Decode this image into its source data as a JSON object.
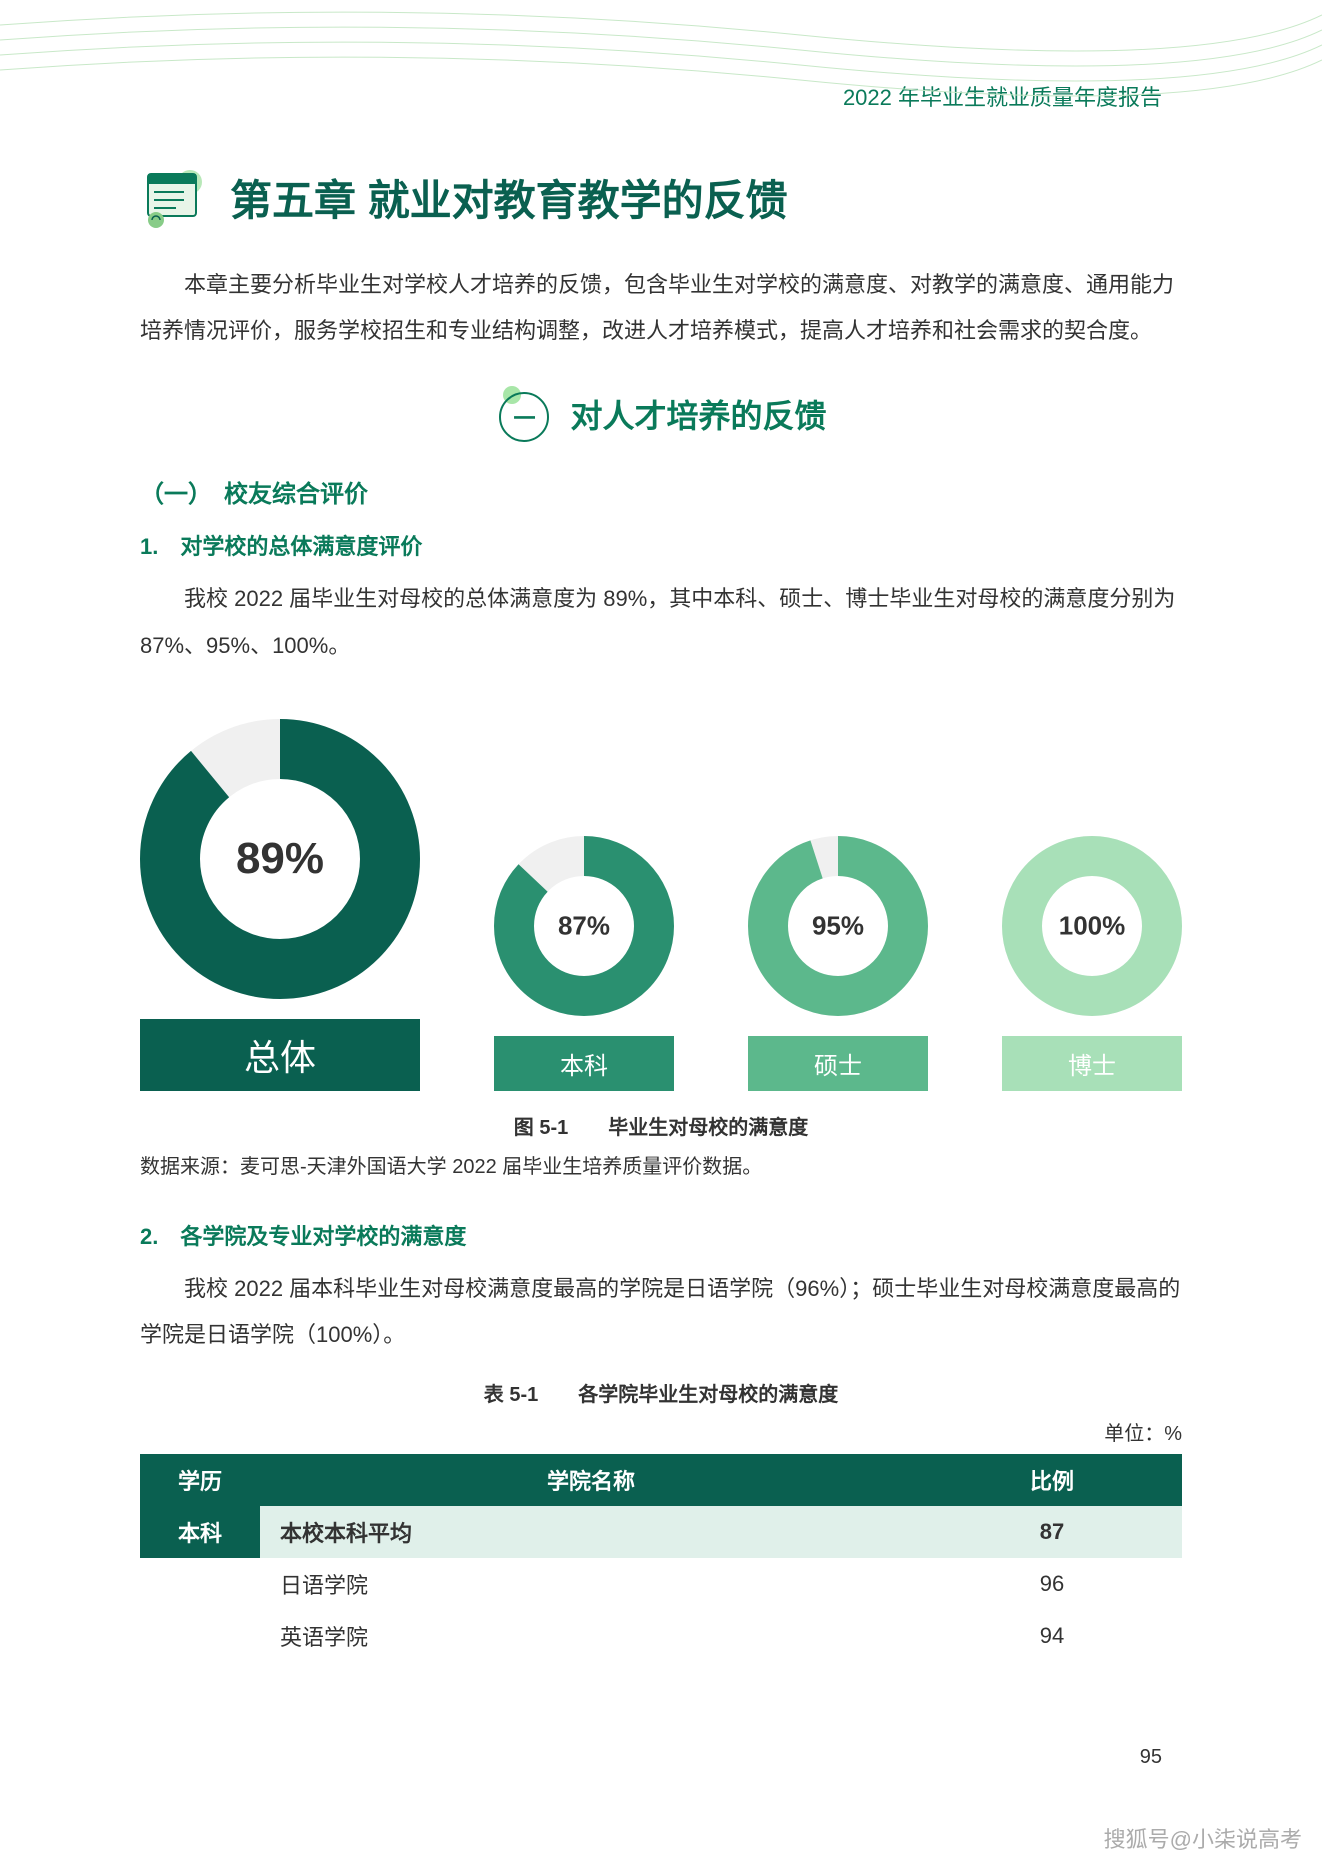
{
  "header": {
    "report_title": "2022 年毕业生就业质量年度报告"
  },
  "chapter": {
    "title": "第五章 就业对教育教学的反馈",
    "intro": "本章主要分析毕业生对学校人才培养的反馈，包含毕业生对学校的满意度、对教学的满意度、通用能力培养情况评价，服务学校招生和专业结构调整，改进人才培养模式，提高人才培养和社会需求的契合度。"
  },
  "section1": {
    "badge": "一",
    "title": "对人才培养的反馈"
  },
  "subsection1": {
    "label": "（一）　校友综合评价"
  },
  "item1": {
    "title": "1.　对学校的总体满意度评价",
    "body": "我校 2022 届毕业生对母校的总体满意度为 89%，其中本科、硕士、博士毕业生对母校的满意度分别为 87%、95%、100%。"
  },
  "donut_chart": {
    "type": "donut",
    "background_color": "#ffffff",
    "items": [
      {
        "label": "总体",
        "value": 89,
        "display": "89%",
        "size": 280,
        "thickness": 60,
        "color": "#0a6050",
        "remainder_color": "#f0f0f0",
        "center_fontsize": 44,
        "label_bg": "#0a6050",
        "label_fontsize": 36
      },
      {
        "label": "本科",
        "value": 87,
        "display": "87%",
        "size": 180,
        "thickness": 40,
        "color": "#2a9070",
        "remainder_color": "#f0f0f0",
        "center_fontsize": 26,
        "label_bg": "#2a9070",
        "label_fontsize": 24
      },
      {
        "label": "硕士",
        "value": 95,
        "display": "95%",
        "size": 180,
        "thickness": 40,
        "color": "#5cb88c",
        "remainder_color": "#f0f0f0",
        "center_fontsize": 26,
        "label_bg": "#5cb88c",
        "label_fontsize": 24
      },
      {
        "label": "博士",
        "value": 100,
        "display": "100%",
        "size": 180,
        "thickness": 40,
        "color": "#a8e0b8",
        "remainder_color": "#f0f0f0",
        "center_fontsize": 26,
        "label_bg": "#a8e0b8",
        "label_fontsize": 24
      }
    ],
    "caption": "图 5-1　　毕业生对母校的满意度",
    "source": "数据来源：麦可思-天津外国语大学 2022 届毕业生培养质量评价数据。"
  },
  "item2": {
    "title": "2.　各学院及专业对学校的满意度",
    "body": "我校 2022 届本科毕业生对母校满意度最高的学院是日语学院（96%）；硕士毕业生对母校满意度最高的学院是日语学院（100%）。"
  },
  "table": {
    "caption": "表 5-1　　各学院毕业生对母校的满意度",
    "unit": "单位：%",
    "header_bg": "#0a6050",
    "highlight_bg": "#e0f0ea",
    "columns": [
      "学历",
      "学院名称",
      "比例"
    ],
    "rows": [
      {
        "degree": "本科",
        "name": "本校本科平均",
        "ratio": "87",
        "highlight": true
      },
      {
        "degree": "",
        "name": "日语学院",
        "ratio": "96",
        "highlight": false
      },
      {
        "degree": "",
        "name": "英语学院",
        "ratio": "94",
        "highlight": false
      }
    ]
  },
  "page_number": "95",
  "watermark": "搜狐号@小柒说高考"
}
